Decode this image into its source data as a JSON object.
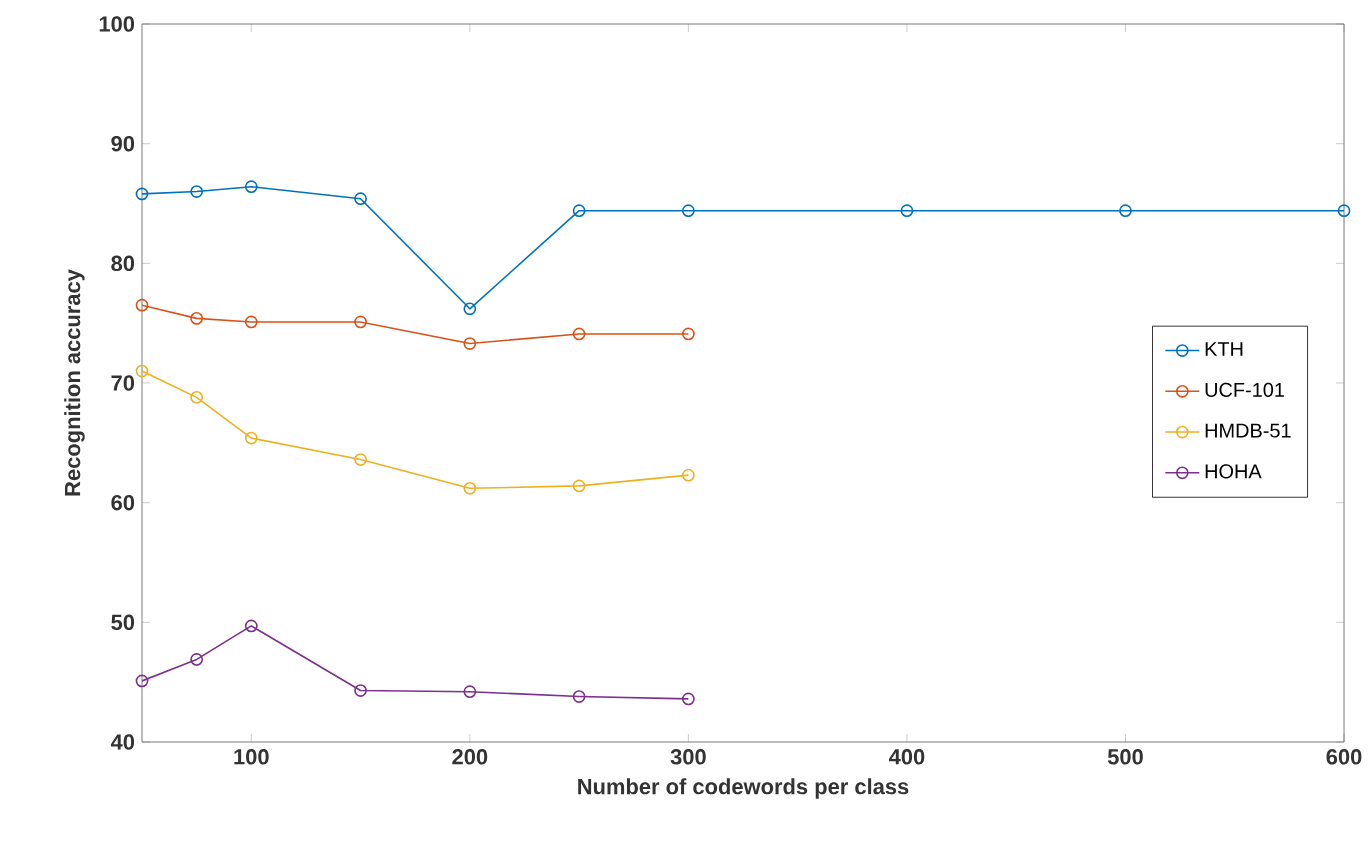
{
  "chart_data": {
    "type": "line",
    "xlabel": "Number of codewords per class",
    "ylabel": "Recognition accuracy",
    "xlim": [
      50,
      600
    ],
    "xticks": [
      100,
      200,
      300,
      400,
      500,
      600
    ],
    "ylim": [
      40,
      100
    ],
    "yticks": [
      40,
      50,
      60,
      70,
      80,
      90,
      100
    ],
    "marker": "circle",
    "legend": "right",
    "grid": false,
    "series": [
      {
        "name": "KTH",
        "color": "#0072bd",
        "x": [
          50,
          75,
          100,
          150,
          200,
          250,
          300,
          400,
          500,
          600
        ],
        "values": [
          85.8,
          86.0,
          86.4,
          85.4,
          76.2,
          84.4,
          84.4,
          84.4,
          84.4,
          84.4
        ]
      },
      {
        "name": "UCF-101",
        "color": "#d95319",
        "x": [
          50,
          75,
          100,
          150,
          200,
          250,
          300
        ],
        "values": [
          76.5,
          75.4,
          75.1,
          75.1,
          73.3,
          74.1,
          74.1
        ]
      },
      {
        "name": "HMDB-51",
        "color": "#edb120",
        "x": [
          50,
          75,
          100,
          150,
          200,
          250,
          300
        ],
        "values": [
          71.0,
          68.8,
          65.4,
          63.6,
          61.2,
          61.4,
          62.3
        ]
      },
      {
        "name": "HOHA",
        "color": "#7e2f8e",
        "x": [
          50,
          75,
          100,
          150,
          200,
          250,
          300
        ],
        "values": [
          45.1,
          46.9,
          49.7,
          44.3,
          44.2,
          43.8,
          43.6
        ]
      }
    ]
  }
}
